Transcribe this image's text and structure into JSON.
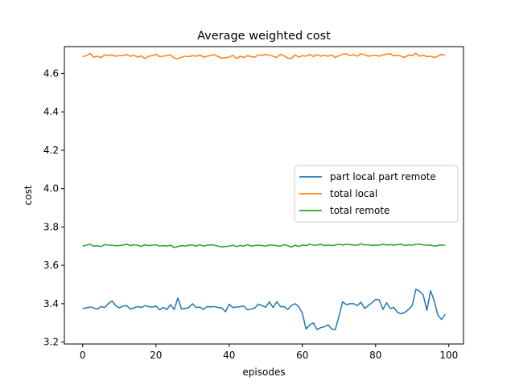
{
  "chart_data": {
    "type": "line",
    "title": "Average weighted cost",
    "xlabel": "episodes",
    "ylabel": "cost",
    "xlim": [
      -5,
      104
    ],
    "ylim": [
      3.19,
      4.74
    ],
    "xticks": [
      0,
      20,
      40,
      60,
      80,
      100
    ],
    "yticks": [
      3.2,
      3.4,
      3.6,
      3.8,
      4.0,
      4.2,
      4.4,
      4.6
    ],
    "ytick_labels": [
      "3.2",
      "3.4",
      "3.6",
      "3.8",
      "4.0",
      "4.2",
      "4.4",
      "4.6"
    ],
    "xtick_labels": [
      "0",
      "20",
      "40",
      "60",
      "80",
      "100"
    ],
    "grid": false,
    "legend_position": "center-right",
    "colors": {
      "part_local_part_remote": "#1f77b4",
      "total_local": "#ff7f0e",
      "total_remote": "#2ca02c"
    },
    "series": [
      {
        "name": "part local part remote",
        "color": "#1f77b4",
        "values": [
          3.375,
          3.378,
          3.383,
          3.378,
          3.372,
          3.385,
          3.38,
          3.4,
          3.415,
          3.39,
          3.378,
          3.388,
          3.39,
          3.372,
          3.378,
          3.385,
          3.38,
          3.39,
          3.385,
          3.382,
          3.388,
          3.368,
          3.38,
          3.37,
          3.395,
          3.37,
          3.43,
          3.372,
          3.375,
          3.38,
          3.4,
          3.38,
          3.382,
          3.37,
          3.385,
          3.383,
          3.385,
          3.38,
          3.378,
          3.358,
          3.398,
          3.38,
          3.382,
          3.385,
          3.388,
          3.368,
          3.372,
          3.378,
          3.398,
          3.39,
          3.382,
          3.41,
          3.38,
          3.41,
          3.385,
          3.385,
          3.37,
          3.39,
          3.4,
          3.385,
          3.35,
          3.268,
          3.29,
          3.3,
          3.265,
          3.275,
          3.28,
          3.29,
          3.268,
          3.265,
          3.335,
          3.41,
          3.395,
          3.4,
          3.4,
          3.39,
          3.408,
          3.375,
          3.39,
          3.405,
          3.422,
          3.42,
          3.37,
          3.405,
          3.375,
          3.38,
          3.355,
          3.348,
          3.355,
          3.37,
          3.39,
          3.475,
          3.465,
          3.445,
          3.365,
          3.468,
          3.415,
          3.34,
          3.318,
          3.345
        ]
      },
      {
        "name": "total local",
        "color": "#ff7f0e",
        "values": [
          4.688,
          4.693,
          4.705,
          4.685,
          4.69,
          4.682,
          4.698,
          4.693,
          4.697,
          4.69,
          4.693,
          4.693,
          4.7,
          4.69,
          4.695,
          4.685,
          4.692,
          4.678,
          4.69,
          4.693,
          4.7,
          4.688,
          4.69,
          4.693,
          4.697,
          4.68,
          4.677,
          4.685,
          4.69,
          4.688,
          4.693,
          4.69,
          4.697,
          4.685,
          4.69,
          4.695,
          4.698,
          4.688,
          4.68,
          4.683,
          4.685,
          4.695,
          4.678,
          4.69,
          4.683,
          4.693,
          4.688,
          4.685,
          4.697,
          4.695,
          4.7,
          4.695,
          4.69,
          4.683,
          4.7,
          4.692,
          4.68,
          4.678,
          4.697,
          4.685,
          4.693,
          4.69,
          4.7,
          4.688,
          4.698,
          4.69,
          4.695,
          4.69,
          4.697,
          4.683,
          4.693,
          4.7,
          4.702,
          4.693,
          4.698,
          4.69,
          4.703,
          4.697,
          4.69,
          4.693,
          4.695,
          4.69,
          4.697,
          4.7,
          4.703,
          4.692,
          4.695,
          4.69,
          4.683,
          4.697,
          4.693,
          4.705,
          4.69,
          4.695,
          4.688,
          4.69,
          4.683,
          4.69,
          4.7,
          4.695
        ]
      },
      {
        "name": "total remote",
        "color": "#2ca02c",
        "values": [
          3.7,
          3.705,
          3.71,
          3.7,
          3.702,
          3.698,
          3.708,
          3.705,
          3.705,
          3.702,
          3.703,
          3.706,
          3.71,
          3.703,
          3.707,
          3.705,
          3.698,
          3.707,
          3.703,
          3.705,
          3.708,
          3.7,
          3.703,
          3.7,
          3.705,
          3.693,
          3.698,
          3.703,
          3.7,
          3.705,
          3.706,
          3.7,
          3.708,
          3.7,
          3.705,
          3.707,
          3.705,
          3.7,
          3.696,
          3.698,
          3.7,
          3.705,
          3.698,
          3.703,
          3.7,
          3.708,
          3.7,
          3.703,
          3.705,
          3.703,
          3.7,
          3.706,
          3.705,
          3.702,
          3.7,
          3.708,
          3.703,
          3.695,
          3.705,
          3.698,
          3.706,
          3.703,
          3.71,
          3.705,
          3.706,
          3.71,
          3.703,
          3.706,
          3.703,
          3.706,
          3.71,
          3.706,
          3.71,
          3.708,
          3.706,
          3.705,
          3.712,
          3.706,
          3.708,
          3.703,
          3.706,
          3.705,
          3.71,
          3.706,
          3.708,
          3.706,
          3.708,
          3.71,
          3.703,
          3.707,
          3.705,
          3.71,
          3.71,
          3.707,
          3.705,
          3.705,
          3.7,
          3.703,
          3.706,
          3.705
        ]
      }
    ]
  }
}
